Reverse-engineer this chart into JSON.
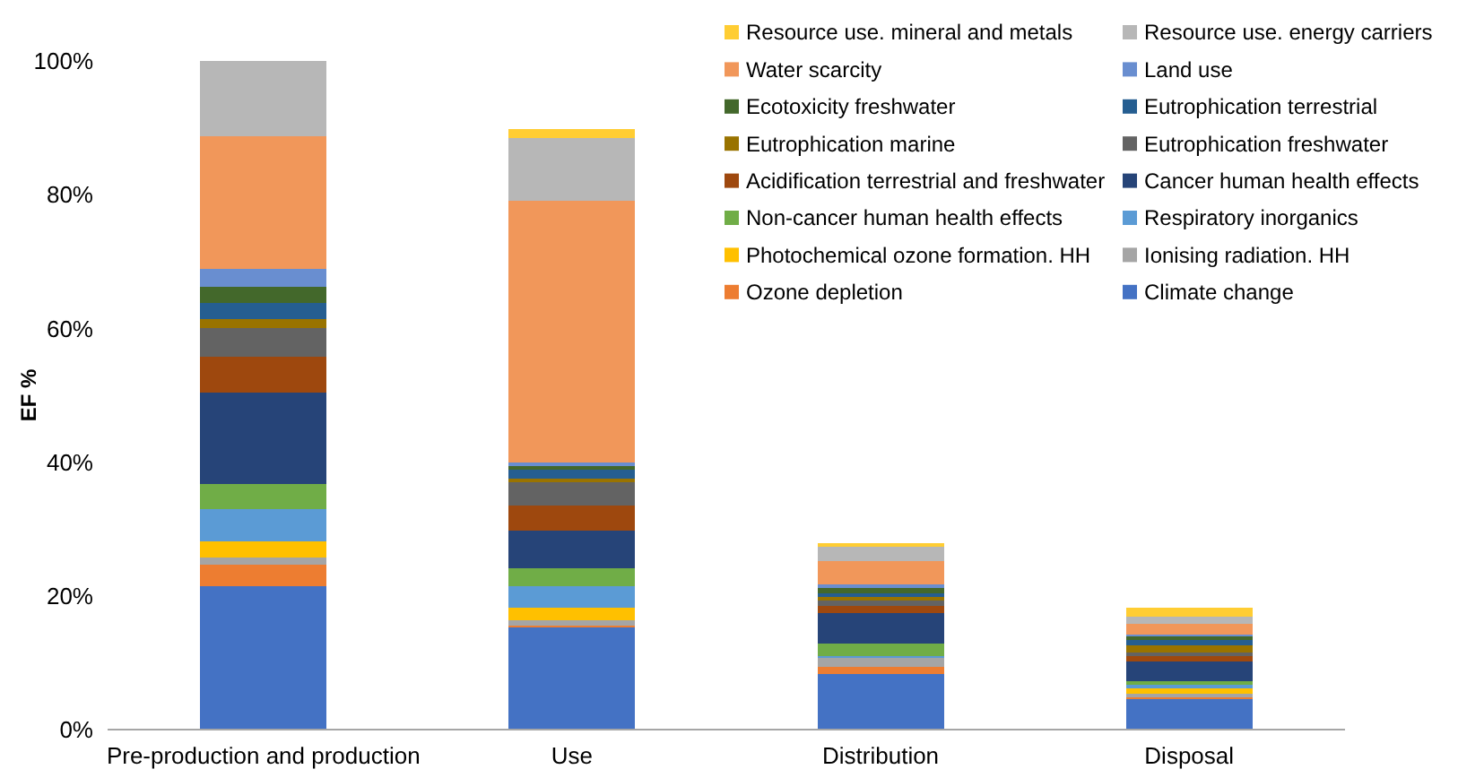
{
  "chart_data": {
    "type": "bar",
    "stacked": true,
    "ylabel": "EF %",
    "legend": "top right",
    "grid": false,
    "categories": [
      "Pre-production and production",
      "Use",
      "Distribution",
      "Disposal"
    ],
    "ylim": [
      0,
      100
    ],
    "yticks": [
      {
        "value": 0,
        "label": "0%"
      },
      {
        "value": 20,
        "label": "20%"
      },
      {
        "value": 40,
        "label": "40%"
      },
      {
        "value": 60,
        "label": "60%"
      },
      {
        "value": 80,
        "label": "80%"
      },
      {
        "value": 100,
        "label": "100%"
      }
    ],
    "series": [
      {
        "name": "Climate change",
        "color": "#4472c4",
        "values": [
          21.5,
          15.3,
          8.3,
          4.5
        ]
      },
      {
        "name": "Ozone depletion",
        "color": "#ed7d31",
        "values": [
          3.2,
          0.3,
          1.1,
          0.4
        ]
      },
      {
        "name": "Ionising radiation. HH",
        "color": "#a5a5a5",
        "values": [
          1.0,
          0.8,
          1.2,
          0.4
        ]
      },
      {
        "name": "Photochemical ozone formation. HH",
        "color": "#ffc000",
        "values": [
          2.5,
          1.9,
          0.2,
          0.8
        ]
      },
      {
        "name": "Respiratory inorganics",
        "color": "#5b9bd5",
        "values": [
          4.8,
          3.1,
          0.2,
          0.5
        ]
      },
      {
        "name": "Non-cancer human health effects",
        "color": "#70ad47",
        "values": [
          3.6,
          2.7,
          1.9,
          0.6
        ]
      },
      {
        "name": "Cancer human health effects",
        "color": "#264478",
        "values": [
          13.9,
          5.7,
          4.6,
          2.9
        ]
      },
      {
        "name": "Acidification terrestrial and freshwater",
        "color": "#9e480e",
        "values": [
          5.3,
          3.8,
          1.0,
          0.8
        ]
      },
      {
        "name": "Eutrophication freshwater",
        "color": "#636363",
        "values": [
          4.3,
          3.4,
          0.9,
          0.5
        ]
      },
      {
        "name": "Eutrophication marine",
        "color": "#997300",
        "values": [
          1.2,
          0.6,
          0.4,
          1.2
        ]
      },
      {
        "name": "Eutrophication terrestrial",
        "color": "#255e91",
        "values": [
          2.5,
          1.3,
          0.6,
          0.7
        ]
      },
      {
        "name": "Ecotoxicity freshwater",
        "color": "#43682b",
        "values": [
          2.5,
          0.6,
          0.7,
          0.6
        ]
      },
      {
        "name": "Land use",
        "color": "#698ed0",
        "values": [
          2.5,
          0.5,
          0.5,
          0.4
        ]
      },
      {
        "name": "Water scarcity",
        "color": "#f1975a",
        "values": [
          19.9,
          39.2,
          3.6,
          1.6
        ]
      },
      {
        "name": "Resource use. energy carriers",
        "color": "#b7b7b7",
        "values": [
          11.3,
          9.2,
          2.2,
          0.9
        ]
      },
      {
        "name": "Resource use. mineral and metals",
        "color": "#ffcd33",
        "values": [
          0,
          1.4,
          0.6,
          1.4
        ]
      }
    ]
  }
}
